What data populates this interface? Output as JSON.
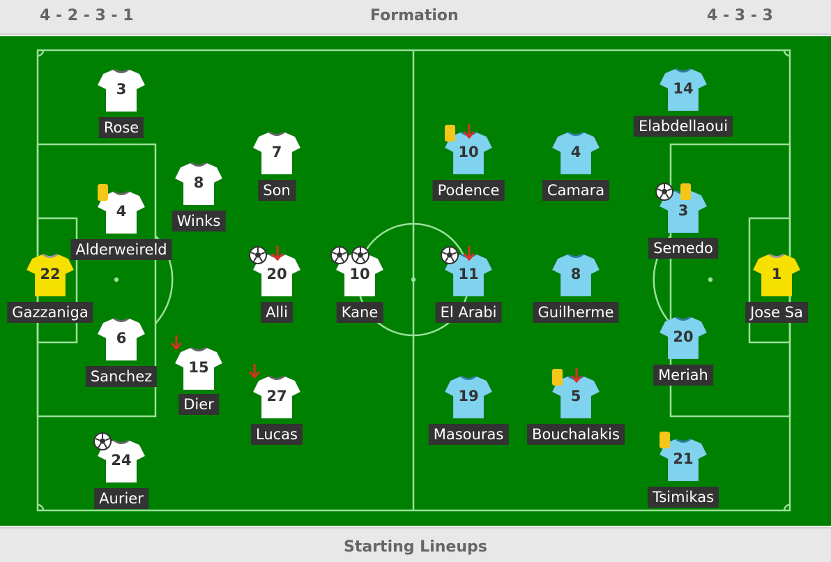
{
  "header": {
    "home_formation": "4 - 2 - 3 - 1",
    "title": "Formation",
    "away_formation": "4 - 3 - 3"
  },
  "footer": {
    "title": "Starting Lineups"
  },
  "colors": {
    "pitch": "#008000",
    "home_shirt": "#ffffff",
    "away_shirt": "#7fd3ee",
    "goalkeeper_shirt": "#f5e000",
    "yellow_card": "#f5c518",
    "sub_arrow": "#d93025"
  },
  "home": {
    "players": [
      {
        "number": "3",
        "name": "Rose",
        "events": []
      },
      {
        "number": "4",
        "name": "Alderweireld",
        "events": [
          "yellow-card"
        ]
      },
      {
        "number": "22",
        "name": "Gazzaniga",
        "events": [],
        "goalkeeper": true
      },
      {
        "number": "6",
        "name": "Sanchez",
        "events": []
      },
      {
        "number": "24",
        "name": "Aurier",
        "events": [
          "goal"
        ]
      },
      {
        "number": "8",
        "name": "Winks",
        "events": []
      },
      {
        "number": "15",
        "name": "Dier",
        "events": [
          "substituted"
        ]
      },
      {
        "number": "7",
        "name": "Son",
        "events": []
      },
      {
        "number": "20",
        "name": "Alli",
        "events": [
          "goal",
          "substituted"
        ]
      },
      {
        "number": "27",
        "name": "Lucas",
        "events": [
          "substituted"
        ]
      },
      {
        "number": "10",
        "name": "Kane",
        "events": [
          "goal",
          "goal"
        ]
      }
    ]
  },
  "away": {
    "players": [
      {
        "number": "10",
        "name": "Podence",
        "events": [
          "yellow-card",
          "substituted"
        ]
      },
      {
        "number": "4",
        "name": "Camara",
        "events": []
      },
      {
        "number": "11",
        "name": "El Arabi",
        "events": [
          "goal",
          "substituted"
        ]
      },
      {
        "number": "8",
        "name": "Guilherme",
        "events": []
      },
      {
        "number": "19",
        "name": "Masouras",
        "events": []
      },
      {
        "number": "5",
        "name": "Bouchalakis",
        "events": [
          "yellow-card",
          "substituted"
        ]
      },
      {
        "number": "14",
        "name": "Elabdellaoui",
        "events": []
      },
      {
        "number": "3",
        "name": "Semedo",
        "events": [
          "goal",
          "yellow-card"
        ]
      },
      {
        "number": "20",
        "name": "Meriah",
        "events": []
      },
      {
        "number": "21",
        "name": "Tsimikas",
        "events": [
          "yellow-card"
        ]
      },
      {
        "number": "1",
        "name": "Jose Sa",
        "events": [],
        "goalkeeper": true
      }
    ]
  }
}
